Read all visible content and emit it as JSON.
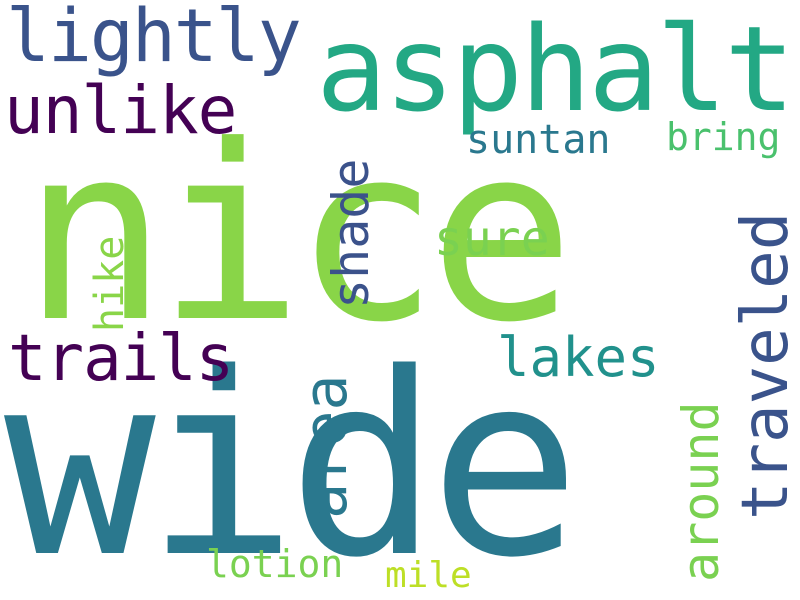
{
  "words": [
    {
      "text": "wide",
      "color": "#2a788e"
    },
    {
      "text": "nice",
      "color": "#89d548"
    },
    {
      "text": "asphalt",
      "color": "#23a884"
    },
    {
      "text": "lightly",
      "color": "#3a538b"
    },
    {
      "text": "unlike",
      "color": "#440154"
    },
    {
      "text": "traveled",
      "color": "#3a538b"
    },
    {
      "text": "trails",
      "color": "#440154"
    },
    {
      "text": "around",
      "color": "#7ad151"
    },
    {
      "text": "lakes",
      "color": "#21918c"
    },
    {
      "text": "area",
      "color": "#2a788e"
    },
    {
      "text": "shade",
      "color": "#3b528b"
    },
    {
      "text": "suntan",
      "color": "#2a788e"
    },
    {
      "text": "bring",
      "color": "#4ac16d"
    },
    {
      "text": "sure",
      "color": "#7ad151"
    },
    {
      "text": "hike",
      "color": "#89d548"
    },
    {
      "text": "lotion",
      "color": "#7ad151"
    },
    {
      "text": "mile",
      "color": "#bddf26"
    }
  ]
}
